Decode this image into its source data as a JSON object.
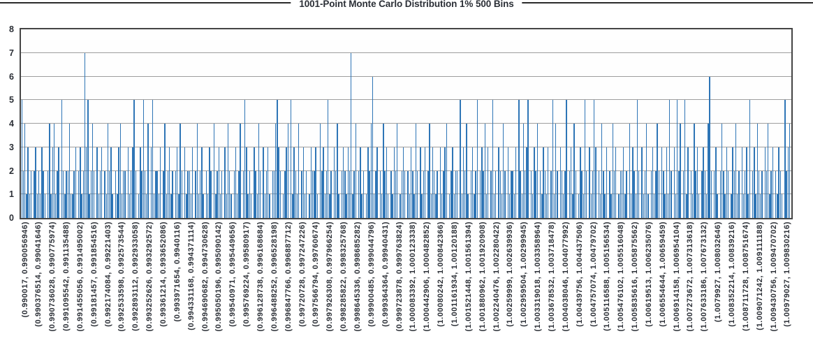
{
  "chart_data": {
    "type": "bar",
    "title": "1001-Point Monte Carlo Distribution 1% 500 Bins",
    "xlabel": "",
    "ylabel": "",
    "ylim": [
      0,
      8
    ],
    "y_ticks": [
      0,
      1,
      2,
      3,
      4,
      5,
      6,
      7,
      8
    ],
    "grid": "horizontal",
    "legend": "none",
    "n_bins": 500,
    "x_label_every_n_bins": 9,
    "colors": {
      "bar": "#2e75b6",
      "grid": "#9e9e9e",
      "frame": "#454545",
      "text": "#2b2f36",
      "rule": "#2b2b2b"
    },
    "x_labels": [
      "(0.990017, 0.990056946)",
      "(0.990376514, 0.99041646)",
      "(0.990736028, 0.990775974)",
      "(0.991095542, 0.991135488)",
      "(0.991455056, 0.991495002)",
      "(0.99181457, 0.991854516)",
      "(0.992174084, 0.99221403)",
      "(0.992533598, 0.992573544)",
      "(0.992893112, 0.992933058)",
      "(0.993252626, 0.993292572)",
      "(0.99361214, 0.993652086)",
      "(0.993971654, 0.9940116)",
      "(0.994331168, 0.994371114)",
      "(0.994690682, 0.994730628)",
      "(0.995050196, 0.995090142)",
      "(0.99540971, 0.995449656)",
      "(0.995769224, 0.99580917)",
      "(0.996128738, 0.996168684)",
      "(0.996488252, 0.996528198)",
      "(0.996847766, 0.996887712)",
      "(0.99720728, 0.997247226)",
      "(0.997566794, 0.99760674)",
      "(0.997926308, 0.997966254)",
      "(0.998285822, 0.998325768)",
      "(0.998645336, 0.998685282)",
      "(0.99900485, 0.999044796)",
      "(0.999364364, 0.99940431)",
      "(0.999723878, 0.999763824)",
      "(1.000083392, 1.000123338)",
      "(1.000442906, 1.000482852)",
      "(1.00080242, 1.000842366)",
      "(1.001161934, 1.00120188)",
      "(1.001521448, 1.001561394)",
      "(1.001880962, 1.001920908)",
      "(1.002240476, 1.002280422)",
      "(1.00259999, 1.002639936)",
      "(1.002959504, 1.00299945)",
      "(1.003319018, 1.003358964)",
      "(1.003678532, 1.003718478)",
      "(1.004038046, 1.004077992)",
      "(1.00439756, 1.004437506)",
      "(1.004757074, 1.00479702)",
      "(1.005116588, 1.005156534)",
      "(1.005476102, 1.005516048)",
      "(1.005835616, 1.005875562)",
      "(1.00619513, 1.006235076)",
      "(1.006554644, 1.00659459)",
      "(1.006914158, 1.006954104)",
      "(1.007273672, 1.007313618)",
      "(1.007633186, 1.007673132)",
      "(1.0079927, 1.008032646)",
      "(1.008352214, 1.00839216)",
      "(1.008711728, 1.008751674)",
      "(1.009071242, 1.009111188)",
      "(1.009430756, 1.009470702)",
      "(1.00979027, 1.009830216)"
    ],
    "values": [
      5,
      2,
      4,
      1,
      3,
      1,
      2,
      0,
      2,
      3,
      1,
      2,
      1,
      3,
      2,
      1,
      0,
      2,
      4,
      1,
      3,
      4,
      1,
      2,
      3,
      0,
      5,
      2,
      1,
      2,
      2,
      4,
      1,
      1,
      2,
      3,
      0,
      2,
      3,
      1,
      2,
      7,
      3,
      5,
      1,
      2,
      4,
      2,
      0,
      3,
      1,
      2,
      3,
      0,
      2,
      1,
      4,
      2,
      3,
      1,
      0,
      2,
      1,
      3,
      4,
      1,
      2,
      2,
      0,
      3,
      1,
      2,
      3,
      5,
      2,
      0,
      1,
      3,
      2,
      5,
      2,
      1,
      4,
      0,
      3,
      5,
      1,
      2,
      2,
      1,
      3,
      0,
      2,
      4,
      1,
      2,
      3,
      1,
      2,
      0,
      2,
      3,
      1,
      4,
      2,
      0,
      3,
      1,
      2,
      2,
      1,
      3,
      0,
      2,
      4,
      1,
      2,
      3,
      1,
      0,
      2,
      1,
      3,
      2,
      0,
      4,
      1,
      2,
      3,
      1,
      2,
      0,
      3,
      1,
      4,
      2,
      1,
      0,
      2,
      3,
      1,
      2,
      4,
      0,
      2,
      5,
      3,
      1,
      2,
      1,
      0,
      3,
      2,
      1,
      4,
      2,
      0,
      3,
      1,
      2,
      3,
      1,
      0,
      2,
      2,
      4,
      5,
      3,
      2,
      0,
      1,
      2,
      3,
      4,
      0,
      5,
      1,
      3,
      2,
      1,
      4,
      0,
      2,
      3,
      1,
      2,
      0,
      1,
      3,
      2,
      2,
      3,
      1,
      0,
      4,
      2,
      3,
      1,
      2,
      5,
      1,
      2,
      0,
      3,
      2,
      4,
      1,
      0,
      2,
      3,
      2,
      1,
      3,
      2,
      7,
      1,
      2,
      4,
      0,
      2,
      3,
      1,
      2,
      0,
      1,
      3,
      2,
      4,
      6,
      1,
      2,
      3,
      0,
      2,
      1,
      4,
      2,
      3,
      1,
      0,
      2,
      1,
      3,
      2,
      4,
      0,
      1,
      2,
      3,
      2,
      0,
      2,
      1,
      3,
      2,
      1,
      4,
      2,
      0,
      3,
      1,
      2,
      3,
      0,
      2,
      4,
      1,
      3,
      2,
      1,
      2,
      0,
      3,
      1,
      2,
      3,
      4,
      0,
      1,
      2,
      3,
      1,
      2,
      2,
      0,
      5,
      1,
      3,
      2,
      4,
      1,
      0,
      2,
      3,
      1,
      2,
      5,
      0,
      2,
      3,
      2,
      4,
      1,
      3,
      0,
      2,
      5,
      1,
      2,
      0,
      3,
      2,
      1,
      4,
      2,
      0,
      3,
      1,
      2,
      2,
      1,
      3,
      0,
      5,
      2,
      1,
      4,
      2,
      3,
      5,
      0,
      2,
      1,
      3,
      2,
      4,
      0,
      2,
      1,
      3,
      2,
      1,
      3,
      0,
      2,
      5,
      1,
      4,
      2,
      0,
      3,
      2,
      1,
      2,
      5,
      0,
      2,
      3,
      1,
      4,
      2,
      0,
      1,
      3,
      2,
      1,
      5,
      2,
      0,
      3,
      1,
      2,
      5,
      3,
      0,
      2,
      1,
      4,
      2,
      1,
      3,
      0,
      2,
      1,
      4,
      2,
      3,
      0,
      1,
      2,
      2,
      3,
      1,
      2,
      0,
      4,
      1,
      3,
      2,
      1,
      5,
      2,
      0,
      3,
      1,
      2,
      4,
      1,
      0,
      2,
      3,
      1,
      2,
      4,
      2,
      0,
      3,
      2,
      1,
      3,
      1,
      5,
      2,
      0,
      3,
      1,
      5,
      2,
      4,
      0,
      2,
      5,
      1,
      3,
      0,
      2,
      1,
      4,
      2,
      3,
      1,
      0,
      2,
      3,
      2,
      1,
      4,
      6,
      2,
      0,
      2,
      3,
      1,
      0,
      2,
      4,
      2,
      1,
      3,
      2,
      0,
      1,
      3,
      2,
      4,
      1,
      2,
      0,
      3,
      1,
      2,
      3,
      1,
      5,
      0,
      2,
      3,
      1,
      4,
      2,
      1,
      2,
      0,
      3,
      2,
      4,
      1,
      2,
      3,
      0,
      2,
      1,
      3,
      2,
      1,
      0,
      5,
      2,
      3,
      4
    ]
  }
}
